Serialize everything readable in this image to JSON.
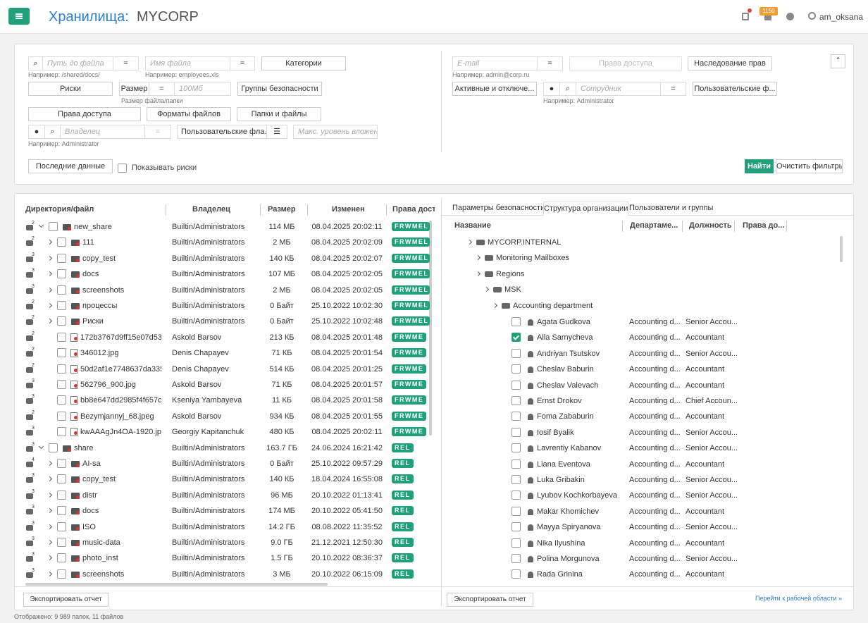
{
  "header": {
    "title_prefix": "Хранилища:",
    "title_name": "MYCORP",
    "notifications": "1150",
    "user": "am_oksana"
  },
  "filters": {
    "path_placeholder": "Путь до файла",
    "path_eq": "=",
    "path_hint": "Например: /shared/docs/",
    "filename_placeholder": "Имя файла",
    "filename_eq": "=",
    "filename_hint": "Например: employees.xls",
    "categories": "Категории",
    "risks": "Риски",
    "size_label": "Размер",
    "size_eq": "=",
    "size_placeholder": "100Мб",
    "size_hint": "Размер файла/папки",
    "security_groups": "Группы безопасности",
    "access_rights": "Права доступа",
    "file_formats": "Форматы файлов",
    "folders_files": "Папки и файлы",
    "owner_placeholder": "Владелец",
    "owner_eq": "=",
    "owner_hint": "Например: Administrator",
    "custom_flags": "Пользовательские фла...",
    "max_depth_placeholder": "Макс. уровень вложенн",
    "recent_data": "Последние данные",
    "show_risks": "Показывать риски",
    "email_placeholder": "E-mail",
    "email_eq": "=",
    "email_hint": "Например: admin@corp.ru",
    "user_access_rights": "Права доступа",
    "inheritance": "Наследование прав",
    "active_disabled": "Активные и отключе...",
    "employee_placeholder": "Сотрудник",
    "employee_eq": "=",
    "employee_hint": "Например: Administrator",
    "user_custom_flags": "Пользовательские ф...",
    "find": "Найти",
    "clear": "Очистить фильтры"
  },
  "files": {
    "columns": [
      "Директория/файл",
      "Владелец",
      "Размер",
      "Изменен",
      "Права дост"
    ],
    "rows": [
      {
        "risk": "2",
        "name": "new_share",
        "owner": "Builtin/Administrators",
        "size": "114 МБ",
        "modified": "08.04.2025 20:02:11",
        "rights": "FRWMEL"
      },
      {
        "risk": "2",
        "name": "111",
        "owner": "Builtin/Administrators",
        "size": "2 МБ",
        "modified": "08.04.2025 20:02:09",
        "rights": "FRWMEL"
      },
      {
        "risk": "3",
        "name": "copy_test",
        "owner": "Builtin/Administrators",
        "size": "140 КБ",
        "modified": "08.04.2025 20:02:07",
        "rights": "FRWMEL"
      },
      {
        "risk": "3",
        "name": "docs",
        "owner": "Builtin/Administrators",
        "size": "107 МБ",
        "modified": "08.04.2025 20:02:05",
        "rights": "FRWMEL"
      },
      {
        "risk": "3",
        "name": "screenshots",
        "owner": "Builtin/Administrators",
        "size": "2 МБ",
        "modified": "08.04.2025 20:02:05",
        "rights": "FRWMEL"
      },
      {
        "risk": "2",
        "name": "процессы",
        "owner": "Builtin/Administrators",
        "size": "0 Байт",
        "modified": "25.10.2022 10:02:30",
        "rights": "FRWMEL"
      },
      {
        "risk": "2",
        "name": "Риски",
        "owner": "Builtin/Administrators",
        "size": "0 Байт",
        "modified": "25.10.2022 10:02:48",
        "rights": "FRWMEL"
      },
      {
        "risk": "2",
        "name": "172b3767d9ff15e07d53",
        "owner": "Askold Barsov",
        "size": "213 КБ",
        "modified": "08.04.2025 20:01:48",
        "rights": "FRWME"
      },
      {
        "risk": "2",
        "name": "346012.jpg",
        "owner": "Denis Chapayev",
        "size": "71 КБ",
        "modified": "08.04.2025 20:01:54",
        "rights": "FRWME"
      },
      {
        "risk": "2",
        "name": "50d2af1e7748637da335",
        "owner": "Denis Chapayev",
        "size": "514 КБ",
        "modified": "08.04.2025 20:01:25",
        "rights": "FRWME"
      },
      {
        "risk": "3",
        "name": "562796_900.jpg",
        "owner": "Askold Barsov",
        "size": "71 КБ",
        "modified": "08.04.2025 20:01:57",
        "rights": "FRWME"
      },
      {
        "risk": "3",
        "name": "bb8e647dd2985f4f657c",
        "owner": "Kseniya Yambayeva",
        "size": "11 КБ",
        "modified": "08.04.2025 20:01:58",
        "rights": "FRWME"
      },
      {
        "risk": "2",
        "name": "Bezymjannyj_68.jpeg",
        "owner": "Askold Barsov",
        "size": "934 КБ",
        "modified": "08.04.2025 20:01:55",
        "rights": "FRWME"
      },
      {
        "risk": "3",
        "name": "kwAAAgJn4OA-1920.jpg",
        "owner": "Georgiy Kapitanchuk",
        "size": "480 КБ",
        "modified": "08.04.2025 20:02:11",
        "rights": "FRWME"
      },
      {
        "risk": "3",
        "name": "share",
        "owner": "Builtin/Administrators",
        "size": "163.7 ГБ",
        "modified": "24.06.2024 16:21:42",
        "rights": "REL"
      },
      {
        "risk": "4",
        "name": "AI-sa",
        "owner": "Builtin/Administrators",
        "size": "0 Байт",
        "modified": "25.10.2022 09:57:29",
        "rights": "REL"
      },
      {
        "risk": "3",
        "name": "copy_test",
        "owner": "Builtin/Administrators",
        "size": "140 КБ",
        "modified": "18.04.2024 16:55:08",
        "rights": "REL"
      },
      {
        "risk": "3",
        "name": "distr",
        "owner": "Builtin/Administrators",
        "size": "96 МБ",
        "modified": "20.10.2022 01:13:41",
        "rights": "REL"
      },
      {
        "risk": "3",
        "name": "docs",
        "owner": "Builtin/Administrators",
        "size": "174 МБ",
        "modified": "20.10.2022 05:41:50",
        "rights": "REL"
      },
      {
        "risk": "3",
        "name": "ISO",
        "owner": "Builtin/Administrators",
        "size": "14.2 ГБ",
        "modified": "08.08.2022 11:35:52",
        "rights": "REL"
      },
      {
        "risk": "3",
        "name": "music-data",
        "owner": "Builtin/Administrators",
        "size": "9.0 ГБ",
        "modified": "21.12.2021 12:50:30",
        "rights": "REL"
      },
      {
        "risk": "3",
        "name": "photo_inst",
        "owner": "Builtin/Administrators",
        "size": "1.5 ГБ",
        "modified": "20.10.2022 08:36:37",
        "rights": "REL"
      },
      {
        "risk": "3",
        "name": "screenshots",
        "owner": "Builtin/Administrators",
        "size": "3 МБ",
        "modified": "20.10.2022 06:15:09",
        "rights": "REL"
      }
    ],
    "export": "Экспортировать отчет",
    "status": "Отображено: 9 989 папок, 11 файлов"
  },
  "org": {
    "tabs": [
      "Параметры безопасности",
      "Структура организации",
      "Пользователи и группы"
    ],
    "columns": [
      "Название",
      "Департаме...",
      "Должность",
      "Права до..."
    ],
    "nodes": [
      "MYCORP.INTERNAL",
      "Monitoring Mailboxes",
      "Regions",
      "MSK",
      "Accounting department"
    ],
    "users": [
      {
        "name": "Agata Gudkova",
        "department": "Accounting d...",
        "position": "Senior Accou...",
        "checked": false
      },
      {
        "name": "Alla Sarnycheva",
        "department": "Accounting d...",
        "position": "Accountant",
        "checked": true
      },
      {
        "name": "Andriyan Tsutskov",
        "department": "Accounting d...",
        "position": "Senior Accou...",
        "checked": false
      },
      {
        "name": "Cheslav Baburin",
        "department": "Accounting d...",
        "position": "Accountant",
        "checked": false
      },
      {
        "name": "Cheslav Valevach",
        "department": "Accounting d...",
        "position": "Accountant",
        "checked": false
      },
      {
        "name": "Ernst Drokov",
        "department": "Accounting d...",
        "position": "Chief Accoun...",
        "checked": false
      },
      {
        "name": "Foma Zababurin",
        "department": "Accounting d...",
        "position": "Accountant",
        "checked": false
      },
      {
        "name": "Iosif Byalik",
        "department": "Accounting d...",
        "position": "Senior Accou...",
        "checked": false
      },
      {
        "name": "Lavrentiy Kabanov",
        "department": "Accounting d...",
        "position": "Senior Accou...",
        "checked": false
      },
      {
        "name": "Liana Eventova",
        "department": "Accounting d...",
        "position": "Accountant",
        "checked": false
      },
      {
        "name": "Luka Gribakin",
        "department": "Accounting d...",
        "position": "Senior Accou...",
        "checked": false
      },
      {
        "name": "Lyubov Kochkorbayeva",
        "department": "Accounting d...",
        "position": "Senior Accou...",
        "checked": false
      },
      {
        "name": "Makar Khomichev",
        "department": "Accounting d...",
        "position": "Accountant",
        "checked": false
      },
      {
        "name": "Mayya Spiryanova",
        "department": "Accounting d...",
        "position": "Senior Accou...",
        "checked": false
      },
      {
        "name": "Nika Ilyushina",
        "department": "Accounting d...",
        "position": "Accountant",
        "checked": false
      },
      {
        "name": "Polina Morgunova",
        "department": "Accounting d...",
        "position": "Senior Accou...",
        "checked": false
      },
      {
        "name": "Rada Grinina",
        "department": "Accounting d...",
        "position": "Accountant",
        "checked": false
      }
    ],
    "export": "Экспортировать отчет",
    "workspace_link": "Перейти к рабочей области »"
  }
}
